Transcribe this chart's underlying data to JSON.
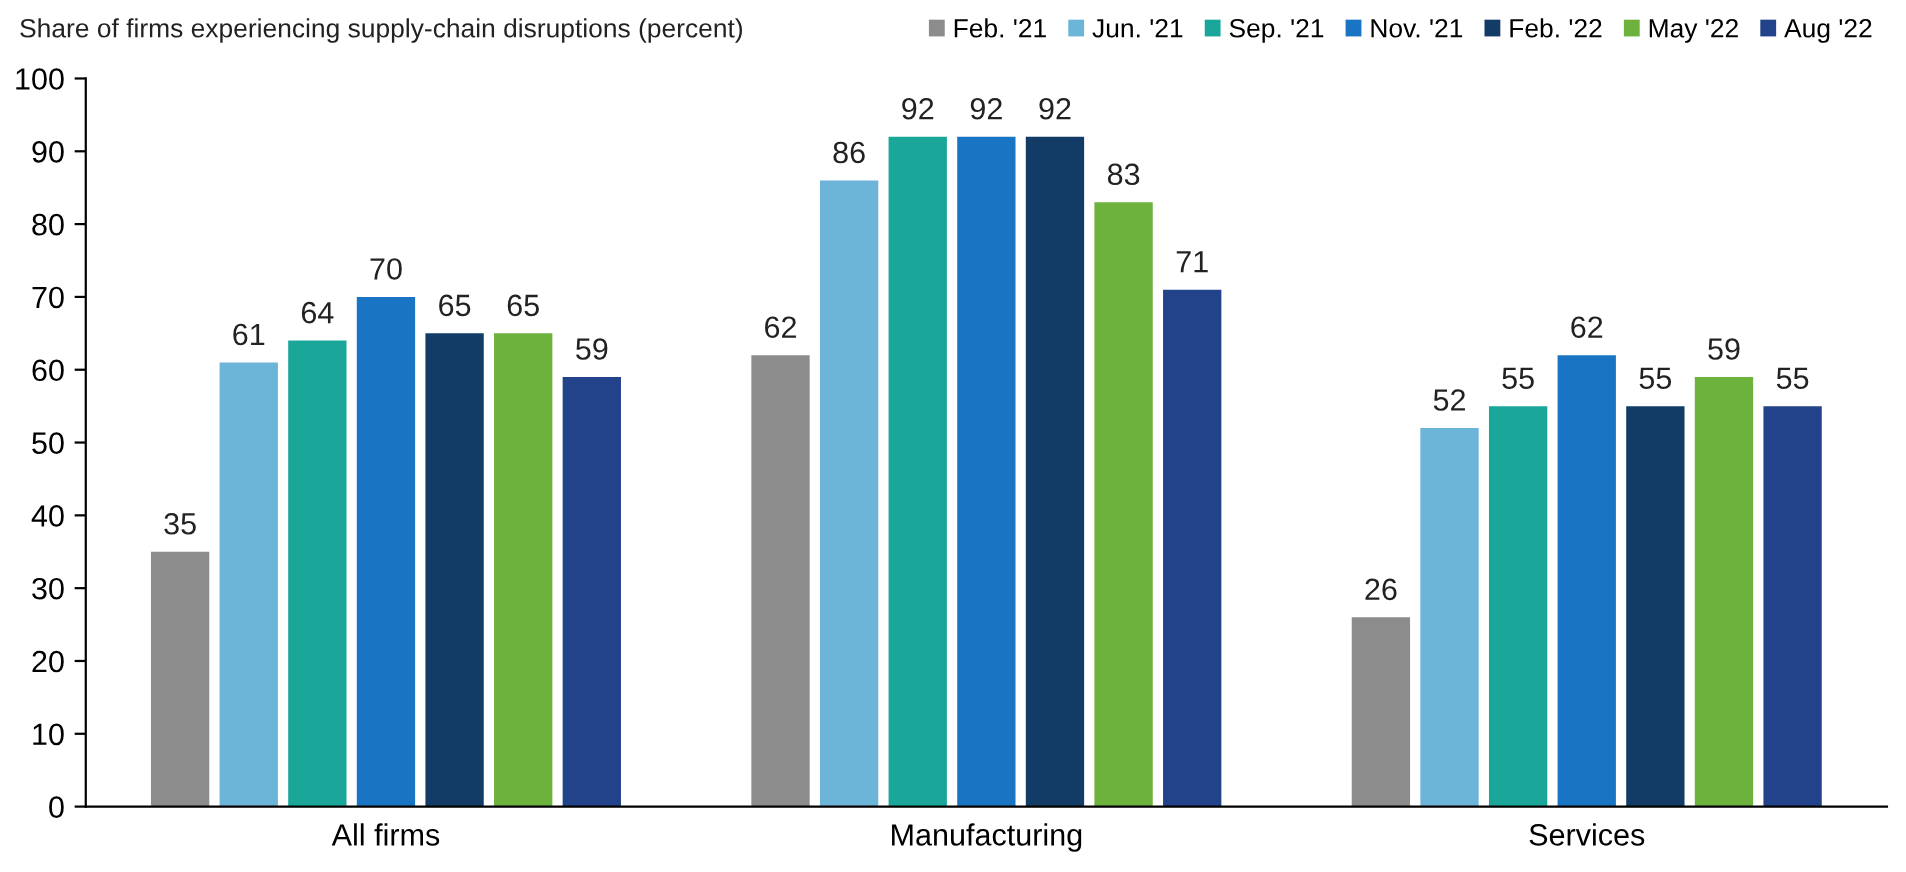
{
  "chart_data": {
    "type": "bar",
    "title": "Share of firms experiencing supply-chain disruptions (percent)",
    "categories": [
      "All firms",
      "Manufacturing",
      "Services"
    ],
    "series": [
      {
        "name": "Feb. '21",
        "color": "#8c8c8c",
        "values": [
          35,
          62,
          26
        ]
      },
      {
        "name": "Jun. '21",
        "color": "#6cb4d8",
        "values": [
          61,
          86,
          52
        ]
      },
      {
        "name": "Sep. '21",
        "color": "#1aa79a",
        "values": [
          64,
          92,
          55
        ]
      },
      {
        "name": "Nov. '21",
        "color": "#1a74c4",
        "values": [
          70,
          92,
          62
        ]
      },
      {
        "name": "Feb. '22",
        "color": "#123c66",
        "values": [
          65,
          92,
          55
        ]
      },
      {
        "name": "May '22",
        "color": "#6cb23c",
        "values": [
          65,
          83,
          59
        ]
      },
      {
        "name": "Aug '22",
        "color": "#22428a",
        "values": [
          59,
          71,
          55
        ]
      }
    ],
    "ylim": [
      0,
      100
    ],
    "yticks": [
      0,
      10,
      20,
      30,
      40,
      50,
      60,
      70,
      80,
      90,
      100
    ],
    "data_labels": true,
    "grid": false,
    "legend": "top right"
  }
}
